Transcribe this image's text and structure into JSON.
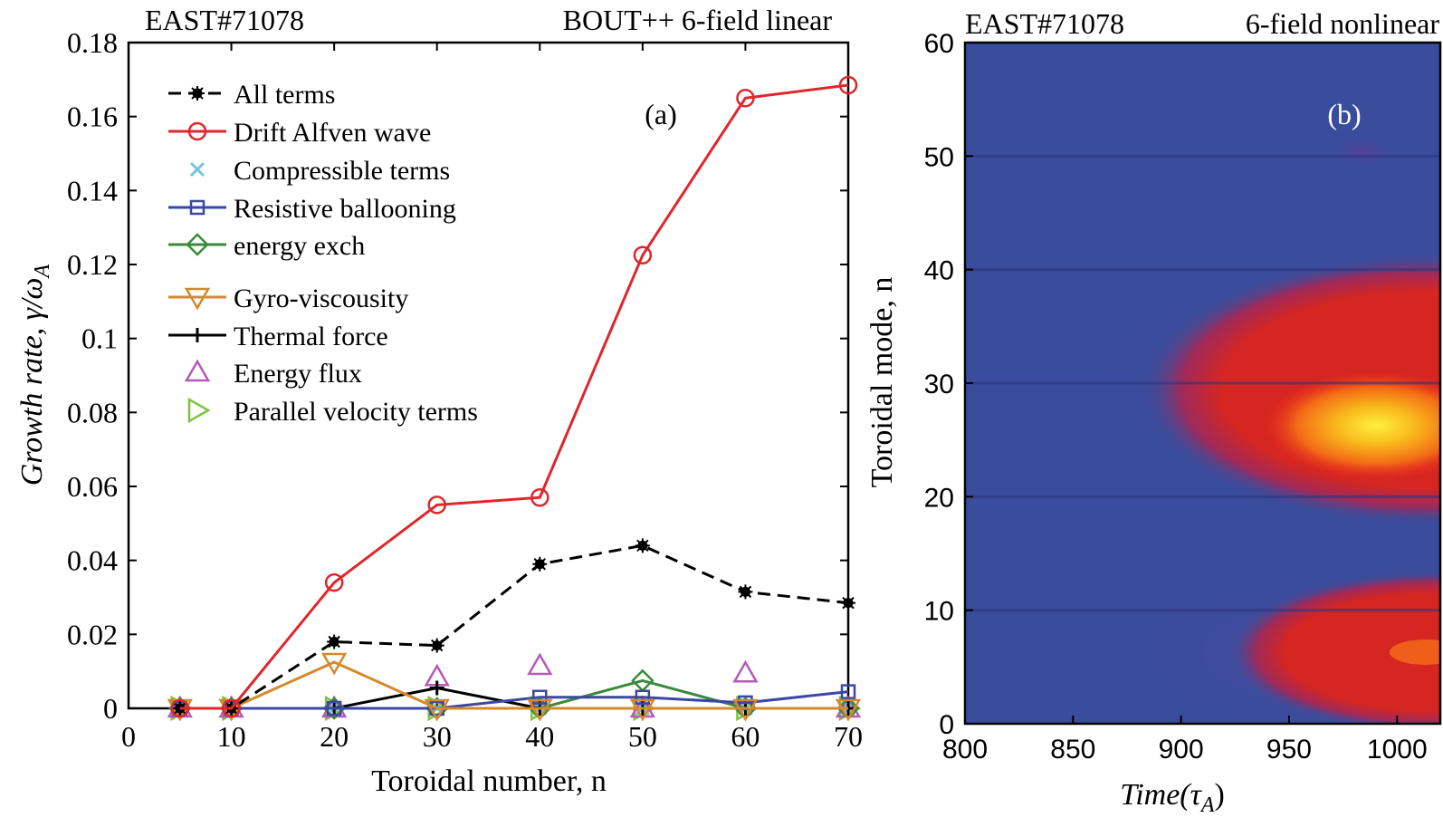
{
  "chart_data": [
    {
      "type": "line",
      "panel_label": "(a)",
      "title_left": "EAST#71078",
      "title_right": "BOUT++ 6-field linear",
      "xlabel": "Toroidal number, n",
      "ylabel_text": "Growth rate, ",
      "ylabel_math": "γ/ω",
      "ylabel_sub": "A",
      "xlim": [
        0,
        70
      ],
      "ylim": [
        0,
        0.18
      ],
      "xticks": [
        0,
        10,
        20,
        30,
        40,
        50,
        60,
        70
      ],
      "yticks": [
        0,
        0.02,
        0.04,
        0.06,
        0.08,
        0.1,
        0.12,
        0.14,
        0.16,
        0.18
      ],
      "ytick_labels": [
        "0",
        "0.02",
        "0.04",
        "0.06",
        "0.08",
        "0.1",
        "0.12",
        "0.14",
        "0.16",
        "0.18"
      ],
      "x": [
        5,
        10,
        20,
        30,
        40,
        50,
        60,
        70
      ],
      "series": [
        {
          "name": "All terms",
          "color": "#000000",
          "marker": "star",
          "line": "dashed",
          "values": [
            0,
            0,
            0.018,
            0.017,
            0.039,
            0.044,
            0.0315,
            0.0285
          ]
        },
        {
          "name": "Drift Alfven wave",
          "color": "#e0262b",
          "marker": "circle",
          "line": "solid",
          "values": [
            0,
            0,
            0.034,
            0.055,
            0.057,
            0.1225,
            0.165,
            0.1685
          ]
        },
        {
          "name": "Compressible terms",
          "color": "#74c5d8",
          "marker": "x",
          "line": "none",
          "values": [
            0,
            0,
            0,
            0,
            0,
            0,
            0,
            0
          ]
        },
        {
          "name": "Resistive ballooning",
          "color": "#3a47a8",
          "marker": "square",
          "line": "solid",
          "values": [
            0,
            0,
            0,
            0,
            0.003,
            0.003,
            0.0015,
            0.0045
          ]
        },
        {
          "name": "energy exch",
          "color": "#3a8a3a",
          "marker": "diamond",
          "line": "solid",
          "values": [
            0,
            0,
            0,
            0,
            0,
            0.0075,
            0,
            0
          ]
        },
        {
          "name": "Gyro-viscousity",
          "color": "#d4892a",
          "marker": "triangle-down",
          "line": "solid",
          "values": [
            0,
            0,
            0.0125,
            0,
            0,
            0,
            0,
            0
          ]
        },
        {
          "name": "Thermal force",
          "color": "#000000",
          "marker": "plus",
          "line": "solid",
          "values": [
            0,
            0,
            0,
            0.0055,
            0,
            0,
            0,
            0
          ]
        },
        {
          "name": "Energy flux",
          "color": "#b45ab8",
          "marker": "triangle-up",
          "line": "none",
          "values": [
            0,
            0,
            0,
            0.0085,
            0.0115,
            0,
            0.0095,
            0
          ]
        },
        {
          "name": "Parallel velocity terms",
          "color": "#7ec440",
          "marker": "triangle-right",
          "line": "none",
          "values": [
            0,
            0,
            0,
            0,
            0,
            0,
            0,
            0
          ]
        }
      ]
    },
    {
      "type": "heatmap",
      "panel_label": "(b)",
      "title_left": "EAST#71078",
      "title_right": "6-field nonlinear",
      "xlabel_math": "Time(τ",
      "xlabel_sub": "A",
      "xlabel_close": ")",
      "ylabel": "Toroidal mode, n",
      "xlim": [
        800,
        1020
      ],
      "ylim": [
        0,
        60
      ],
      "xticks": [
        800,
        850,
        900,
        950,
        1000
      ],
      "yticks": [
        0,
        10,
        20,
        30,
        40,
        50,
        60
      ],
      "background_color": "#3a4c9c",
      "colormap": [
        "#3a4c9c",
        "#5a3f98",
        "#a02a5a",
        "#d62621",
        "#ef2a1c",
        "#f36a17",
        "#f8b81c",
        "#fdf03a"
      ],
      "features": [
        {
          "label": "main hot spot",
          "time": 1000,
          "mode": 25.5,
          "peak_level": 7
        },
        {
          "label": "low-n band",
          "time": 990,
          "mode": 5,
          "peak_level": 5
        },
        {
          "label": "weak spot",
          "time": 995,
          "mode": 50.5,
          "peak_level": 1
        }
      ]
    }
  ]
}
